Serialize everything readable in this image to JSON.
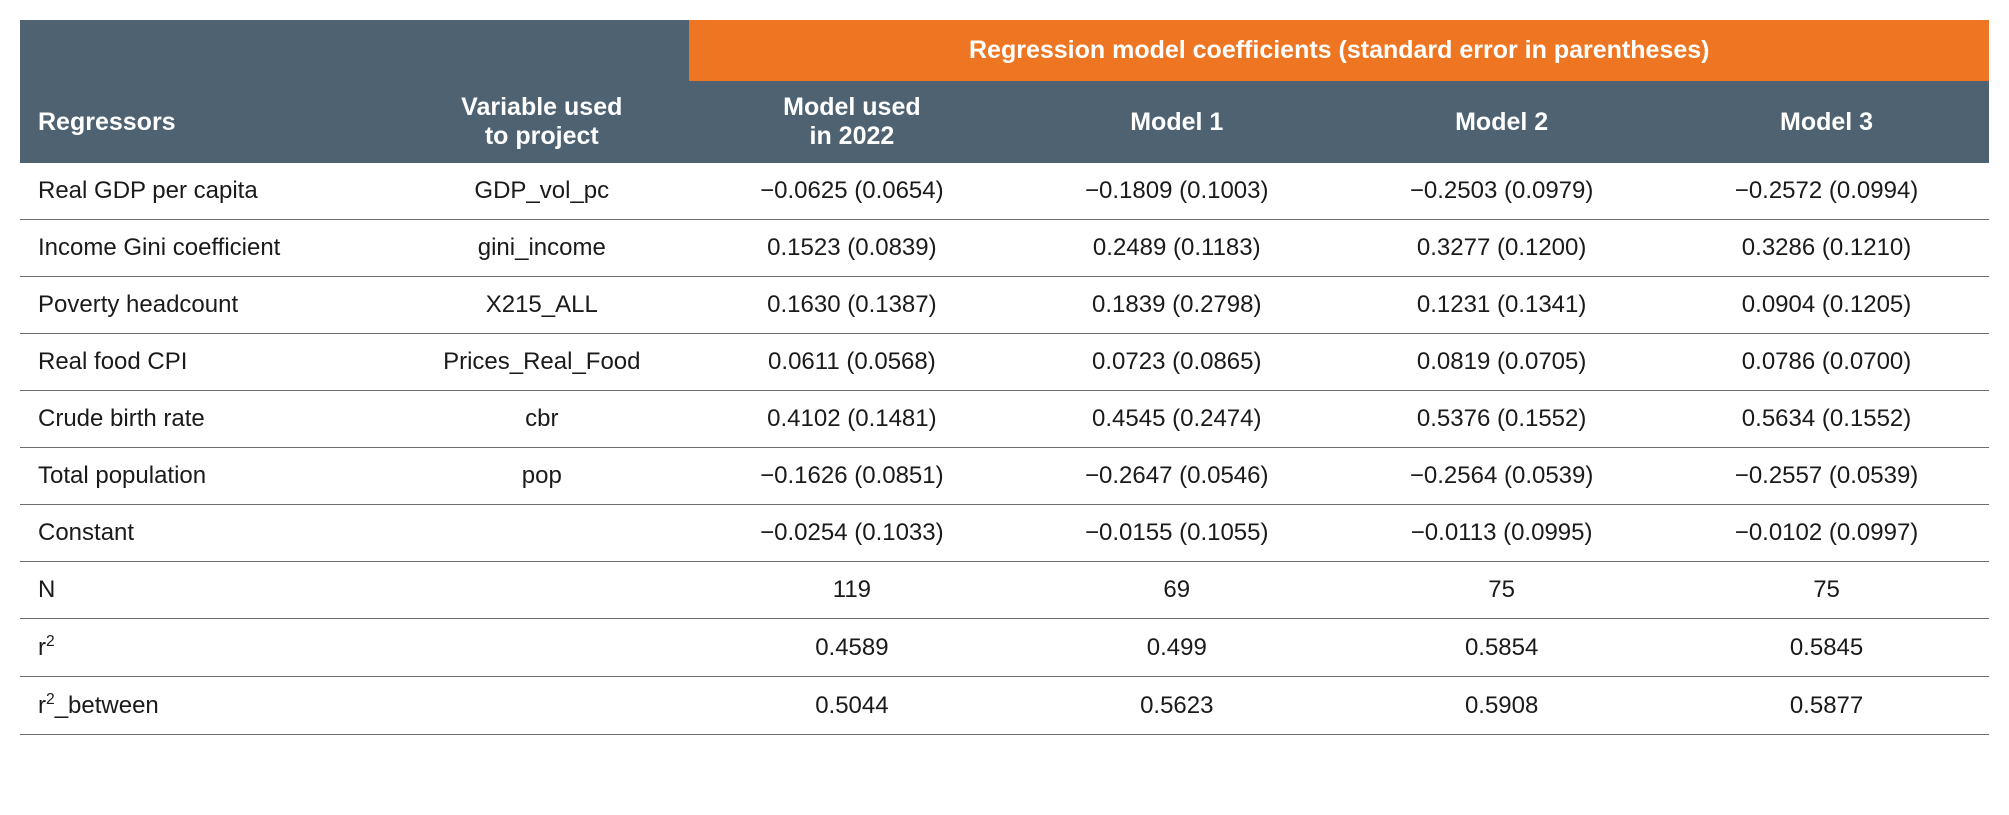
{
  "type": "table",
  "colors": {
    "orange": "#ee7623",
    "slate": "#4e6272",
    "rule": "#6d6e71",
    "text": "#1a1a1a",
    "white": "#ffffff"
  },
  "typography": {
    "header_fontsize": 25,
    "body_fontsize": 24,
    "header_weight": 700,
    "body_weight": 400
  },
  "header": {
    "span_title": "Regression model coefficients (standard error in parentheses)",
    "regressors": "Regressors",
    "variable": "Variable used to project",
    "models": [
      "Model used in 2022",
      "Model 1",
      "Model 2",
      "Model 3"
    ]
  },
  "rows": [
    {
      "regressor": "Real GDP per capita",
      "variable": "GDP_vol_pc",
      "vals": [
        "−0.0625 (0.0654)",
        "−0.1809 (0.1003)",
        "−0.2503 (0.0979)",
        "−0.2572 (0.0994)"
      ]
    },
    {
      "regressor": "Income Gini coefficient",
      "variable": "gini_income",
      "vals": [
        "0.1523 (0.0839)",
        "0.2489 (0.1183)",
        "0.3277 (0.1200)",
        "0.3286 (0.1210)"
      ]
    },
    {
      "regressor": "Poverty headcount",
      "variable": "X215_ALL",
      "vals": [
        "0.1630 (0.1387)",
        "0.1839 (0.2798)",
        "0.1231 (0.1341)",
        "0.0904 (0.1205)"
      ]
    },
    {
      "regressor": "Real food CPI",
      "variable": "Prices_Real_Food",
      "vals": [
        "0.0611 (0.0568)",
        "0.0723 (0.0865)",
        "0.0819 (0.0705)",
        "0.0786 (0.0700)"
      ]
    },
    {
      "regressor": "Crude birth rate",
      "variable": "cbr",
      "vals": [
        "0.4102 (0.1481)",
        "0.4545 (0.2474)",
        "0.5376 (0.1552)",
        "0.5634 (0.1552)"
      ]
    },
    {
      "regressor": "Total population",
      "variable": "pop",
      "vals": [
        "−0.1626 (0.0851)",
        "−0.2647 (0.0546)",
        "−0.2564 (0.0539)",
        "−0.2557 (0.0539)"
      ]
    },
    {
      "regressor": "Constant",
      "variable": "",
      "vals": [
        "−0.0254 (0.1033)",
        "−0.0155 (0.1055)",
        "−0.0113 (0.0995)",
        "−0.0102 (0.0997)"
      ]
    }
  ],
  "stats": [
    {
      "label_html": "N",
      "vals": [
        "119",
        "69",
        "75",
        "75"
      ]
    },
    {
      "label_html": "r<sup>2</sup>",
      "vals": [
        "0.4589",
        "0.499",
        "0.5854",
        "0.5845"
      ]
    },
    {
      "label_html": "r<sup>2</sup>_between",
      "vals": [
        "0.5044",
        "0.5623",
        "0.5908",
        "0.5877"
      ]
    }
  ]
}
